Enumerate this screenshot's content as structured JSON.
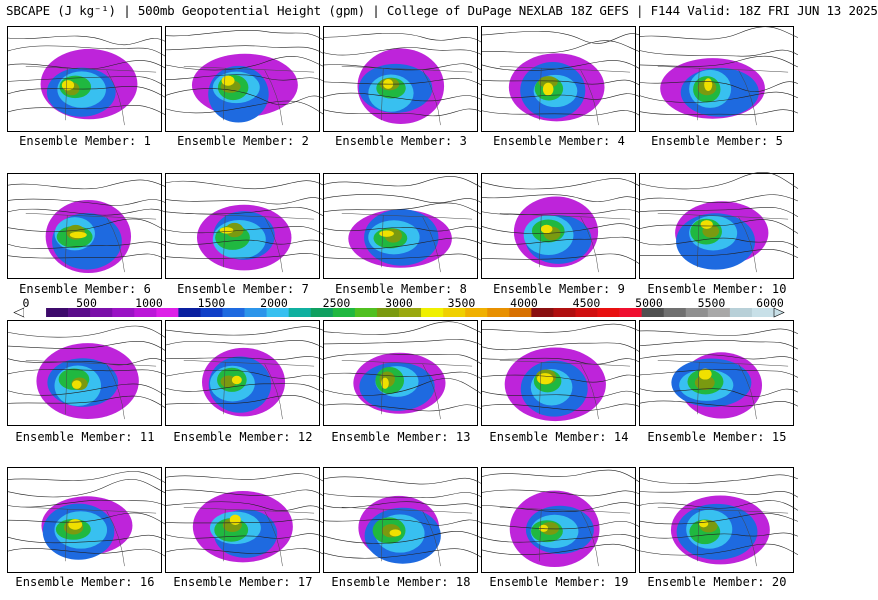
{
  "header": {
    "title": "SBCAPE (J kg⁻¹) | 500mb Geopotential Height (gpm) | College of DuPage NEXLAB 18Z GEFS | F144 Valid: 18Z FRI JUN 13 2025"
  },
  "members": [
    {
      "label": "Ensemble Member: 1"
    },
    {
      "label": "Ensemble Member: 2"
    },
    {
      "label": "Ensemble Member: 3"
    },
    {
      "label": "Ensemble Member: 4"
    },
    {
      "label": "Ensemble Member: 5"
    },
    {
      "label": "Ensemble Member: 6"
    },
    {
      "label": "Ensemble Member: 7"
    },
    {
      "label": "Ensemble Member: 8"
    },
    {
      "label": "Ensemble Member: 9"
    },
    {
      "label": "Ensemble Member: 10"
    },
    {
      "label": "Ensemble Member: 11"
    },
    {
      "label": "Ensemble Member: 12"
    },
    {
      "label": "Ensemble Member: 13"
    },
    {
      "label": "Ensemble Member: 14"
    },
    {
      "label": "Ensemble Member: 15"
    },
    {
      "label": "Ensemble Member: 16"
    },
    {
      "label": "Ensemble Member: 17"
    },
    {
      "label": "Ensemble Member: 18"
    },
    {
      "label": "Ensemble Member: 19"
    },
    {
      "label": "Ensemble Member: 20"
    }
  ],
  "colorbar": {
    "labels": [
      "0",
      "500",
      "1000",
      "1500",
      "2000",
      "2500",
      "3000",
      "3500",
      "4000",
      "4500",
      "5000",
      "5500",
      "6000"
    ],
    "colors": [
      "#ffffff",
      "#3d0a6b",
      "#5a0d8a",
      "#7a10a8",
      "#9a14c4",
      "#bb18d8",
      "#dd20e8",
      "#0a1fa0",
      "#1040c8",
      "#1e6ae0",
      "#2c95ea",
      "#38c0f0",
      "#10b0a0",
      "#10a060",
      "#20b840",
      "#50c020",
      "#7a9a10",
      "#9aa810",
      "#f0f000",
      "#f0d000",
      "#f0b000",
      "#e89000",
      "#d87000",
      "#8a1010",
      "#b01010",
      "#d01010",
      "#e81010",
      "#f01030",
      "#505050",
      "#707070",
      "#909090",
      "#a8a8a8",
      "#b8d0d8",
      "#c8e0e8"
    ]
  }
}
